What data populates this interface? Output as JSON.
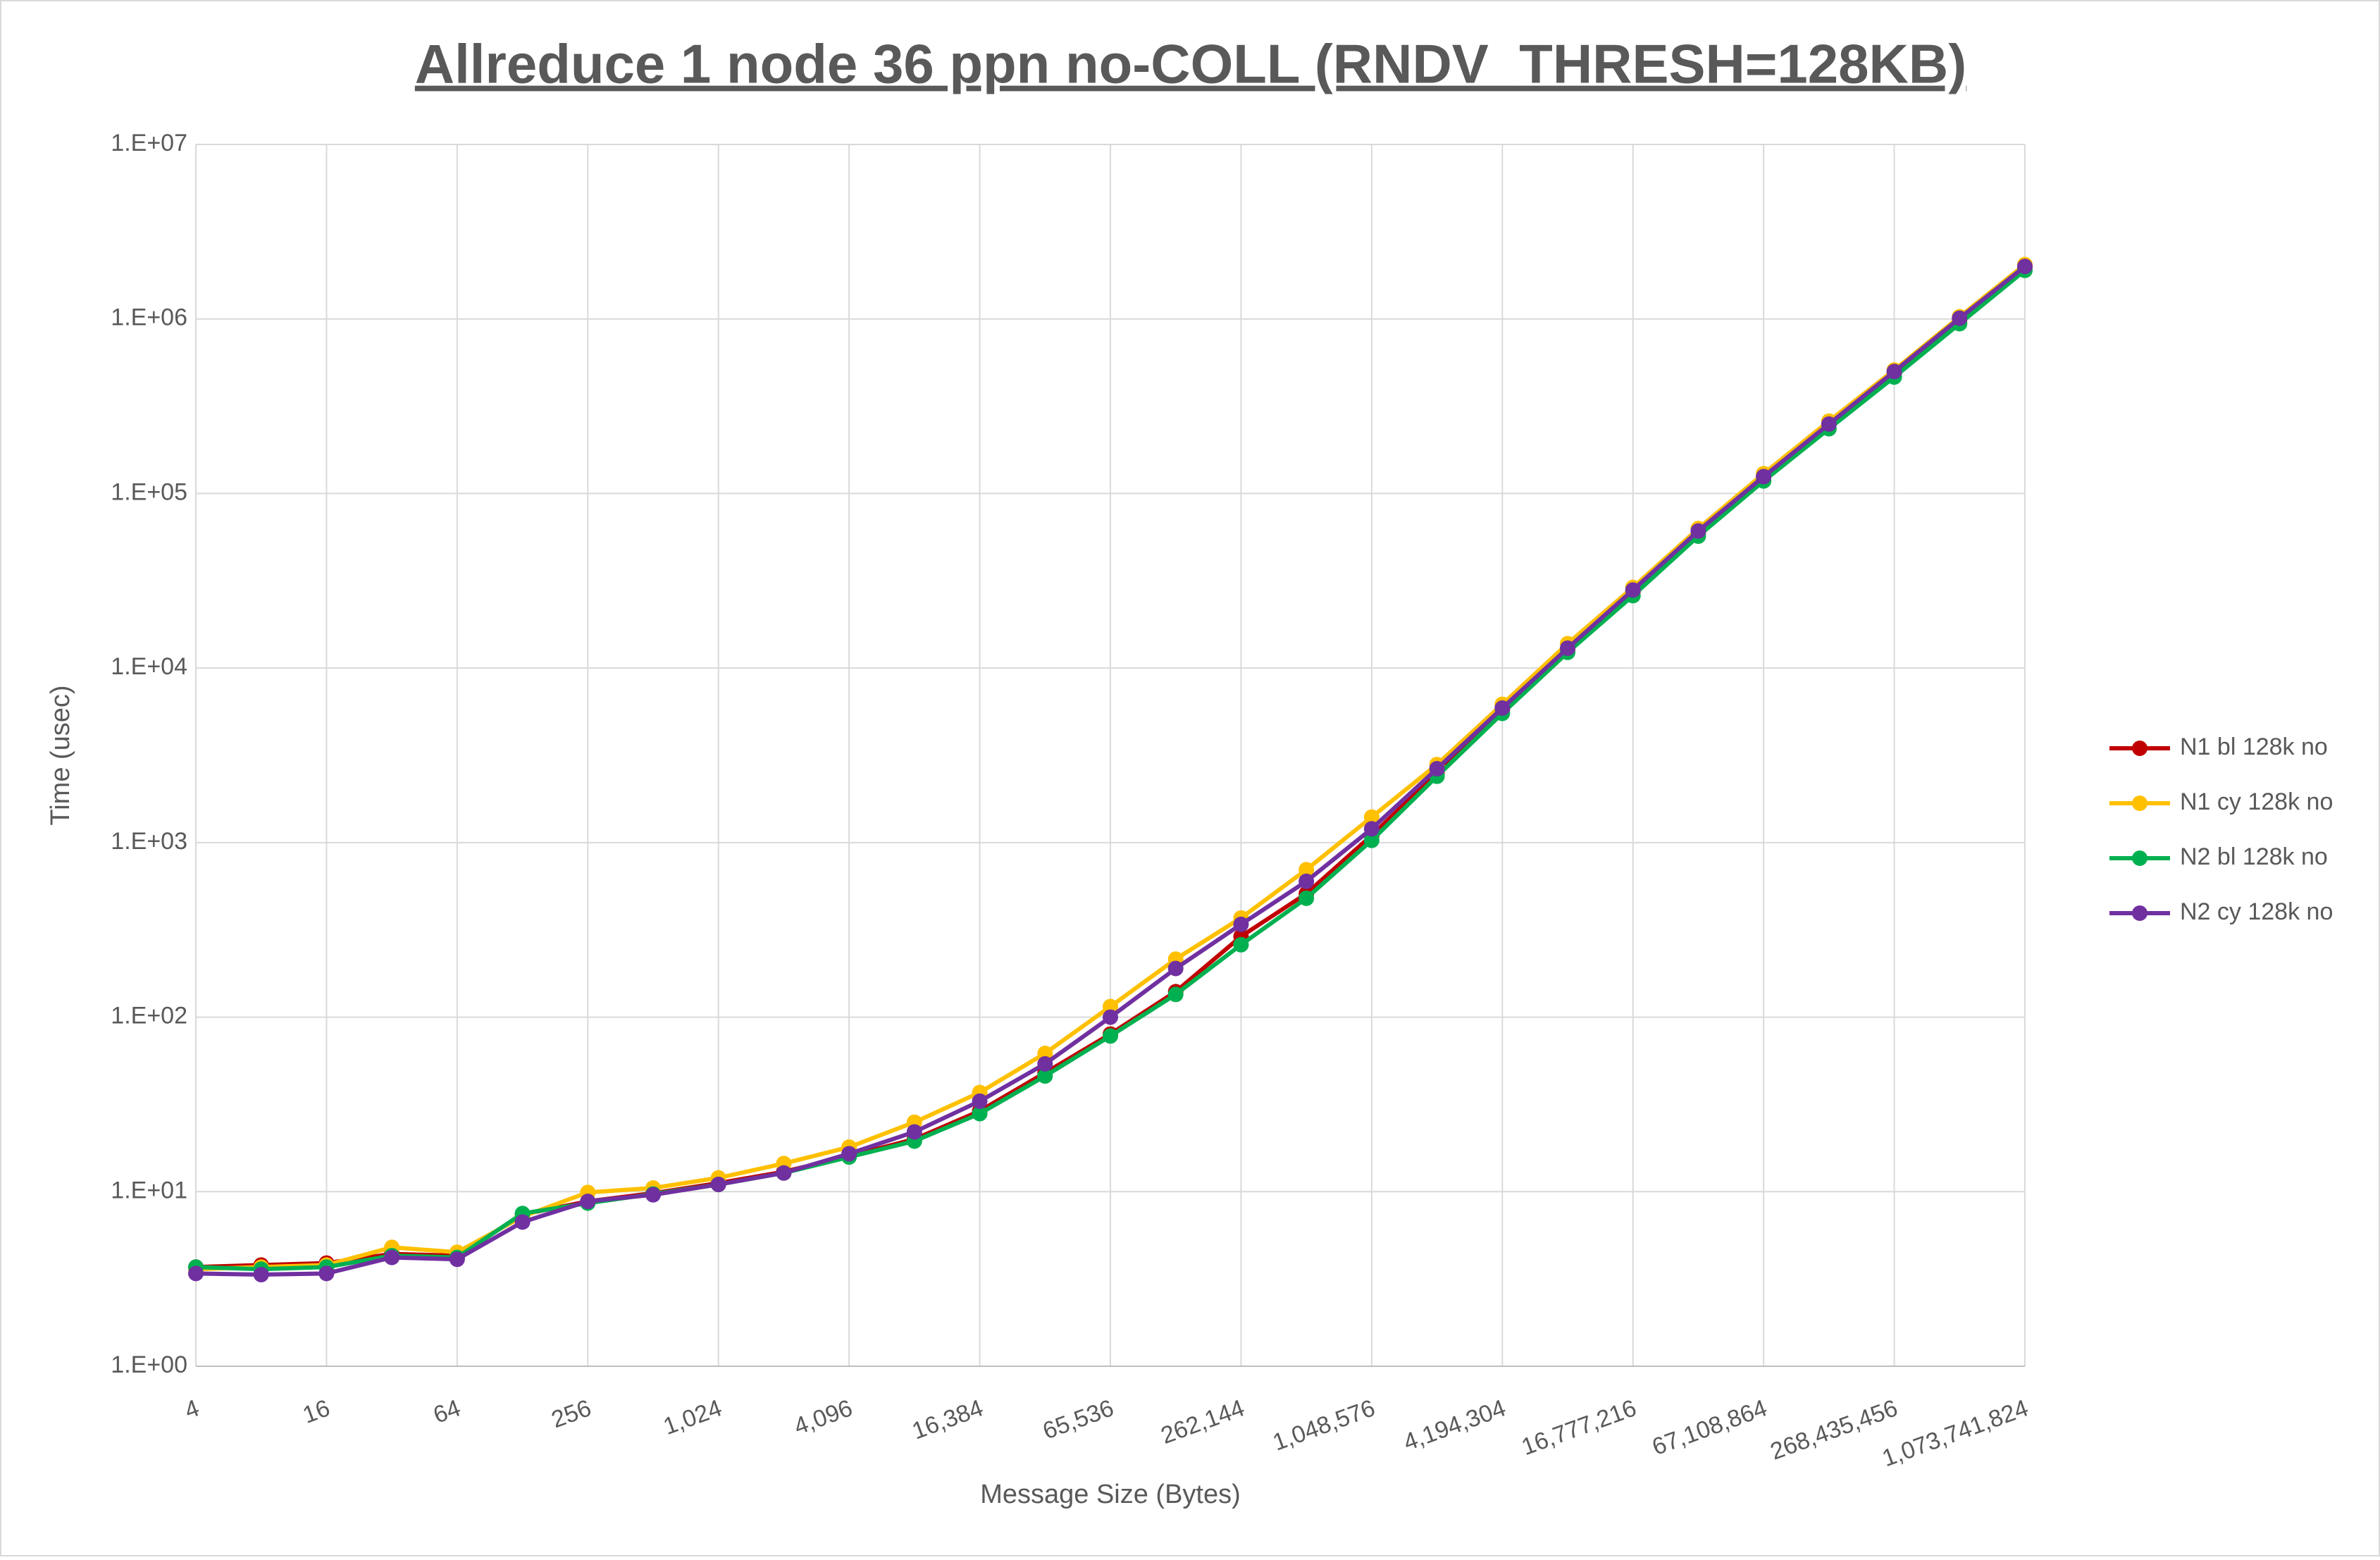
{
  "chart_data": {
    "type": "line",
    "title": "Allreduce 1 node 36 ppn no-COLL (RNDV_THRESH=128KB)",
    "x_label": "Message Size (Bytes)",
    "y_label": "Time (usec)",
    "x": [
      4,
      8,
      16,
      32,
      64,
      128,
      256,
      512,
      1024,
      2048,
      4096,
      8192,
      16384,
      32768,
      65536,
      131072,
      262144,
      524288,
      1048576,
      2097152,
      4194304,
      8388608,
      16777216,
      33554432,
      67108864,
      134217728,
      268435456,
      536870912,
      1073741824
    ],
    "xlim": [
      4,
      1073741824
    ],
    "xticks": [
      4,
      16,
      64,
      256,
      {
        "value": 1024,
        "label": "1,024"
      },
      {
        "value": 4096,
        "label": "4,096"
      },
      {
        "value": 16384,
        "label": "16,384"
      },
      {
        "value": 65536,
        "label": "65,536"
      },
      {
        "value": 262144,
        "label": "262,144"
      },
      {
        "value": 1048576,
        "label": "1,048,576"
      },
      {
        "value": 4194304,
        "label": "4,194,304"
      },
      {
        "value": 16777216,
        "label": "16,777,216"
      },
      {
        "value": 67108864,
        "label": "67,108,864"
      },
      {
        "value": 268435456,
        "label": "268,435,456"
      },
      {
        "value": 1073741824,
        "label": "1,073,741,824"
      }
    ],
    "x_scale": "log2",
    "ylim": [
      1,
      10000000
    ],
    "yticks": [
      {
        "value": 1,
        "label": "1.E+00"
      },
      {
        "value": 10,
        "label": "1.E+01"
      },
      {
        "value": 100,
        "label": "1.E+02"
      },
      {
        "value": 1000,
        "label": "1.E+03"
      },
      {
        "value": 10000,
        "label": "1.E+04"
      },
      {
        "value": 100000,
        "label": "1.E+05"
      },
      {
        "value": 1000000,
        "label": "1.E+06"
      },
      {
        "value": 10000000,
        "label": "1.E+07"
      }
    ],
    "y_scale": "log10",
    "grid": true,
    "legend": "right",
    "series": [
      {
        "name": "N1 bl 128k no",
        "color": "#c00000",
        "values": [
          3.7,
          3.8,
          3.9,
          4.4,
          4.3,
          7.4,
          8.8,
          9.8,
          11.2,
          13,
          16,
          20,
          29,
          48,
          80,
          140,
          290,
          510,
          1100,
          2500,
          5700,
          12800,
          27500,
          60000,
          125000,
          250000,
          490000,
          990000,
          2000000
        ]
      },
      {
        "name": "N1 cy 128k no",
        "color": "#ffc000",
        "values": [
          3.6,
          3.7,
          3.8,
          4.8,
          4.5,
          7.2,
          9.9,
          10.5,
          12,
          14.5,
          18,
          25,
          37,
          62,
          115,
          215,
          370,
          700,
          1400,
          2800,
          6200,
          13800,
          29000,
          63000,
          130000,
          260000,
          510000,
          1030000,
          2050000
        ]
      },
      {
        "name": "N2 bl 128k no",
        "color": "#00b050",
        "values": [
          3.7,
          3.6,
          3.7,
          4.3,
          4.2,
          7.5,
          8.6,
          9.7,
          11,
          12.8,
          15.8,
          19.5,
          28,
          46,
          78,
          135,
          260,
          480,
          1030,
          2400,
          5500,
          12300,
          26000,
          57000,
          118000,
          235000,
          465000,
          940000,
          1900000
        ]
      },
      {
        "name": "N2 cy 128k no",
        "color": "#7030a0",
        "values": [
          3.4,
          3.35,
          3.4,
          4.2,
          4.1,
          6.7,
          8.8,
          9.6,
          11,
          12.8,
          16.5,
          22,
          33,
          54,
          100,
          190,
          340,
          600,
          1200,
          2650,
          5900,
          13000,
          28000,
          61000,
          125000,
          250000,
          500000,
          1010000,
          2000000
        ]
      }
    ]
  }
}
